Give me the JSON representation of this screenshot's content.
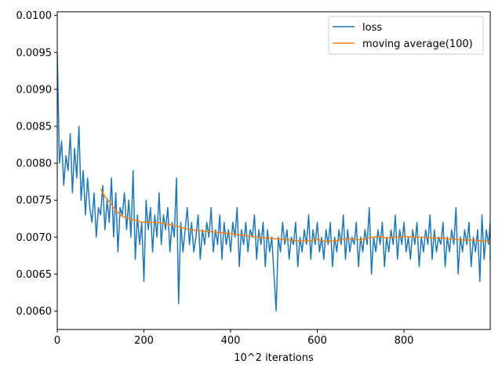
{
  "chart_data": {
    "type": "line",
    "title": "",
    "xlabel": "10^2 iterations",
    "ylabel": "",
    "xlim": [
      0,
      999
    ],
    "ylim": [
      0.00575,
      0.01005
    ],
    "x_ticks": [
      0,
      200,
      400,
      600,
      800
    ],
    "x_tick_labels": [
      "0",
      "200",
      "400",
      "600",
      "800"
    ],
    "y_ticks": [
      0.006,
      0.0065,
      0.007,
      0.0075,
      0.008,
      0.0085,
      0.009,
      0.0095,
      0.01
    ],
    "y_tick_labels": [
      "0.0060",
      "0.0065",
      "0.0070",
      "0.0075",
      "0.0080",
      "0.0085",
      "0.0090",
      "0.0095",
      "0.0100"
    ],
    "grid": false,
    "legend": {
      "position": "upper-right"
    },
    "series": [
      {
        "name": "loss",
        "color": "#1f77b4",
        "x_start": 0,
        "x_step": 5,
        "values": [
          0.0095,
          0.008,
          0.0083,
          0.0077,
          0.0081,
          0.0079,
          0.0084,
          0.0076,
          0.0082,
          0.0078,
          0.0085,
          0.0075,
          0.0079,
          0.0073,
          0.0078,
          0.0074,
          0.0072,
          0.0076,
          0.007,
          0.0074,
          0.0073,
          0.0077,
          0.0071,
          0.0075,
          0.0072,
          0.0078,
          0.007,
          0.0076,
          0.0068,
          0.0074,
          0.0073,
          0.0076,
          0.0071,
          0.0075,
          0.007,
          0.0079,
          0.0067,
          0.0073,
          0.0069,
          0.0072,
          0.0064,
          0.0075,
          0.0071,
          0.0074,
          0.0068,
          0.0073,
          0.007,
          0.0076,
          0.0069,
          0.0073,
          0.0071,
          0.0074,
          0.0068,
          0.0072,
          0.007,
          0.0078,
          0.0061,
          0.0072,
          0.0068,
          0.0071,
          0.0074,
          0.0069,
          0.0072,
          0.0068,
          0.007,
          0.0073,
          0.0067,
          0.0071,
          0.0069,
          0.0072,
          0.007,
          0.0074,
          0.0068,
          0.0071,
          0.0069,
          0.0073,
          0.0067,
          0.0072,
          0.0069,
          0.0071,
          0.0068,
          0.0072,
          0.007,
          0.0074,
          0.0066,
          0.0071,
          0.0069,
          0.0072,
          0.0068,
          0.0071,
          0.007,
          0.0073,
          0.0067,
          0.0071,
          0.0069,
          0.0072,
          0.0066,
          0.0071,
          0.0068,
          0.007,
          0.0065,
          0.006,
          0.007,
          0.0068,
          0.0072,
          0.0069,
          0.0071,
          0.0067,
          0.007,
          0.0069,
          0.0072,
          0.0066,
          0.007,
          0.0068,
          0.0071,
          0.0069,
          0.0073,
          0.0067,
          0.0071,
          0.0069,
          0.0072,
          0.0068,
          0.007,
          0.0067,
          0.0071,
          0.0069,
          0.0072,
          0.0066,
          0.007,
          0.0068,
          0.0071,
          0.0069,
          0.0073,
          0.0067,
          0.0071,
          0.0068,
          0.007,
          0.0069,
          0.0072,
          0.0066,
          0.007,
          0.0068,
          0.0071,
          0.0069,
          0.0074,
          0.0065,
          0.007,
          0.0068,
          0.0071,
          0.0069,
          0.0072,
          0.0066,
          0.007,
          0.0068,
          0.0071,
          0.0069,
          0.0073,
          0.0067,
          0.0071,
          0.0069,
          0.0072,
          0.0068,
          0.007,
          0.0067,
          0.0071,
          0.0069,
          0.0072,
          0.0066,
          0.007,
          0.0068,
          0.0071,
          0.0069,
          0.0073,
          0.0067,
          0.0071,
          0.0068,
          0.007,
          0.0069,
          0.0072,
          0.0066,
          0.007,
          0.0068,
          0.0071,
          0.0069,
          0.0074,
          0.0065,
          0.007,
          0.0068,
          0.0071,
          0.0069,
          0.0072,
          0.0066,
          0.007,
          0.0068,
          0.0071,
          0.0064,
          0.0073,
          0.0067,
          0.0071,
          0.0069,
          0.0072,
          0.0068,
          0.007,
          0.0067,
          0.0071
        ]
      },
      {
        "name": "moving average(100)",
        "color": "#ff7f0e",
        "x": [
          100,
          110,
          120,
          130,
          140,
          150,
          160,
          170,
          180,
          190,
          200,
          220,
          240,
          260,
          280,
          300,
          320,
          340,
          360,
          380,
          400,
          420,
          440,
          460,
          480,
          500,
          520,
          540,
          560,
          580,
          600,
          620,
          640,
          660,
          680,
          700,
          720,
          740,
          760,
          780,
          800,
          820,
          840,
          860,
          880,
          900,
          920,
          940,
          960,
          980,
          999
        ],
        "values": [
          0.00765,
          0.00755,
          0.00748,
          0.0074,
          0.00733,
          0.00728,
          0.00726,
          0.00724,
          0.00723,
          0.00721,
          0.0072,
          0.0072,
          0.00719,
          0.00717,
          0.00714,
          0.00711,
          0.00709,
          0.00708,
          0.00707,
          0.00706,
          0.00705,
          0.00703,
          0.00702,
          0.007,
          0.00699,
          0.00698,
          0.00697,
          0.00696,
          0.00695,
          0.00695,
          0.00697,
          0.00694,
          0.00695,
          0.00697,
          0.00698,
          0.00696,
          0.00699,
          0.00701,
          0.00699,
          0.007,
          0.00701,
          0.007,
          0.007,
          0.00699,
          0.00699,
          0.00698,
          0.00697,
          0.00696,
          0.00696,
          0.00695,
          0.00694
        ]
      }
    ]
  }
}
